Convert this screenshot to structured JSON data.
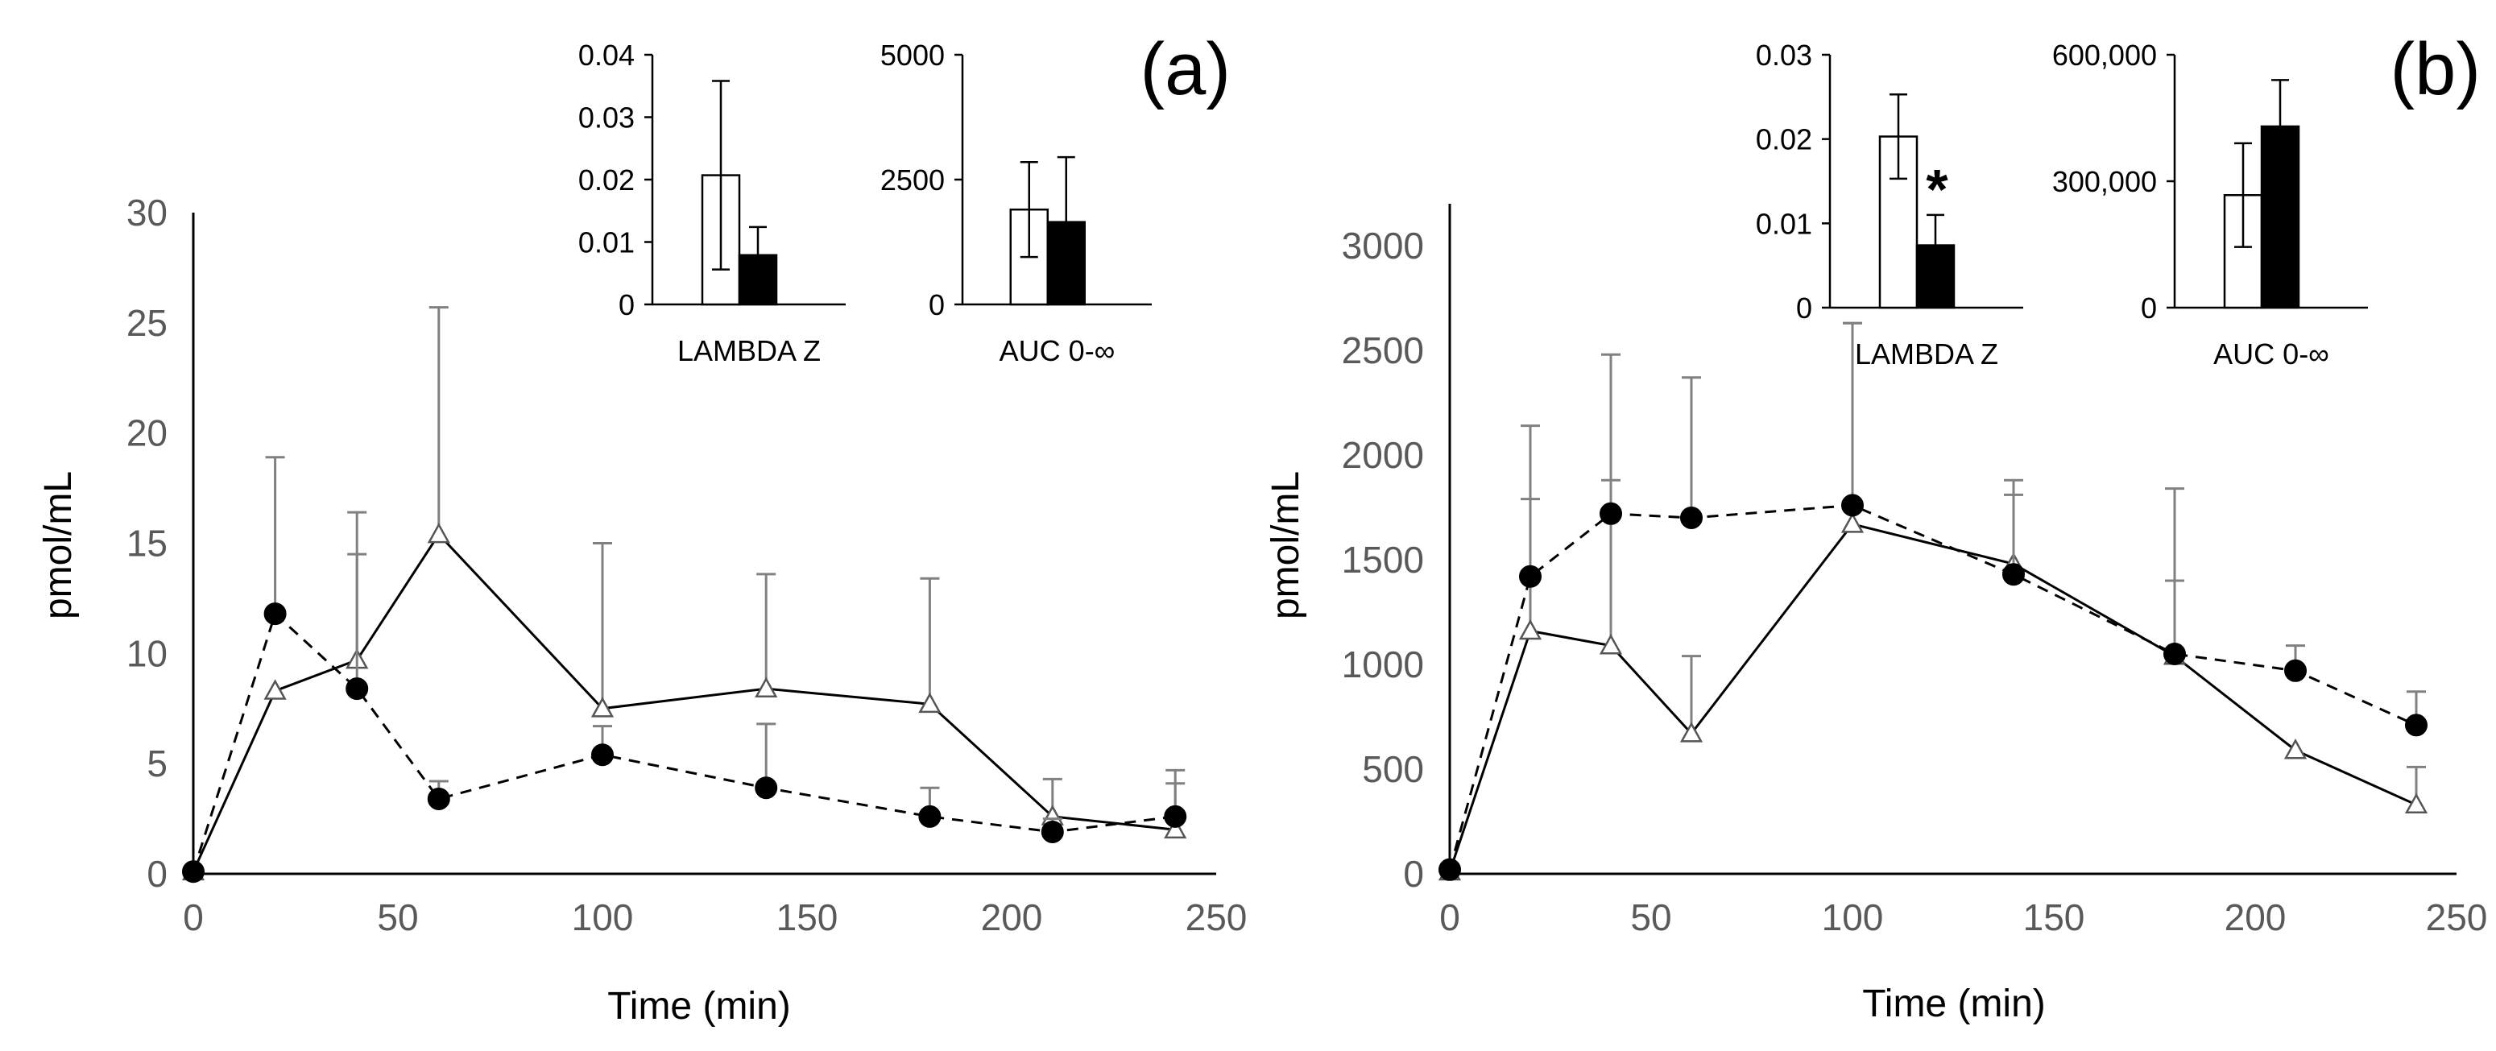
{
  "chart_data": [
    {
      "id": "a",
      "type": "line",
      "panel_label": "(a)",
      "xlabel": "Time (min)",
      "ylabel": "pmol/mL",
      "xlim": [
        0,
        250
      ],
      "ylim": [
        0,
        30
      ],
      "xticks": [
        "0",
        "50",
        "100",
        "150",
        "200",
        "250"
      ],
      "yticks": [
        "0",
        "5",
        "10",
        "15",
        "20",
        "25",
        "30"
      ],
      "series": [
        {
          "name": "open-triangle-solid",
          "marker": "triangle",
          "line": "solid",
          "x": [
            0,
            20,
            40,
            60,
            100,
            140,
            180,
            210,
            240
          ],
          "y": [
            0.1,
            8.3,
            9.7,
            15.4,
            7.5,
            8.4,
            7.7,
            2.6,
            2.0
          ],
          "err": [
            0,
            0,
            4.8,
            10.3,
            7.5,
            5.2,
            5.7,
            1.7,
            2.1
          ]
        },
        {
          "name": "filled-circle-dashed",
          "marker": "circle",
          "line": "dashed",
          "x": [
            0,
            20,
            40,
            60,
            100,
            140,
            180,
            210,
            240
          ],
          "y": [
            0.1,
            11.8,
            8.4,
            3.4,
            5.4,
            3.9,
            2.6,
            1.9,
            2.6
          ],
          "err": [
            0,
            7.1,
            8.0,
            0.8,
            1.3,
            2.9,
            1.3,
            0.6,
            2.1
          ]
        }
      ],
      "insets": [
        {
          "type": "bar",
          "xlabel": "LAMBDA Z",
          "ylim": [
            0,
            0.04
          ],
          "yticks": [
            "0",
            "0.01",
            "0.02",
            "0.03",
            "0.04"
          ],
          "values": [
            0.0207,
            0.0079
          ],
          "err": [
            0.0151,
            0.0045
          ],
          "fills": [
            "#ffffff",
            "#000000"
          ]
        },
        {
          "type": "bar",
          "xlabel": "AUC 0-∞",
          "ylim": [
            0,
            5000
          ],
          "yticks": [
            "0",
            "2500",
            "5000"
          ],
          "values": [
            1900,
            1650
          ],
          "err": [
            950,
            1300
          ],
          "fills": [
            "#ffffff",
            "#000000"
          ]
        }
      ]
    },
    {
      "id": "b",
      "type": "line",
      "panel_label": "(b)",
      "xlabel": "Time (min)",
      "ylabel": "pmol/mL",
      "xlim": [
        0,
        250
      ],
      "ylim": [
        0,
        3200
      ],
      "xticks": [
        "0",
        "50",
        "100",
        "150",
        "200",
        "250"
      ],
      "yticks": [
        "0",
        "500",
        "1000",
        "1500",
        "2000",
        "2500",
        "3000"
      ],
      "series": [
        {
          "name": "open-triangle-solid",
          "marker": "triangle",
          "line": "solid",
          "x": [
            0,
            20,
            40,
            60,
            100,
            140,
            180,
            210,
            240
          ],
          "y": [
            10,
            1160,
            1090,
            670,
            1670,
            1480,
            1040,
            590,
            330
          ],
          "err": [
            0,
            630,
            790,
            370,
            960,
            330,
            360,
            0,
            180
          ]
        },
        {
          "name": "filled-circle-dashed",
          "marker": "circle",
          "line": "dashed",
          "x": [
            0,
            20,
            40,
            60,
            100,
            140,
            180,
            210,
            240
          ],
          "y": [
            20,
            1420,
            1720,
            1700,
            1760,
            1430,
            1050,
            970,
            710
          ],
          "err": [
            0,
            720,
            760,
            670,
            870,
            450,
            790,
            120,
            160
          ]
        }
      ],
      "insets": [
        {
          "type": "bar",
          "xlabel": "LAMBDA Z",
          "ylim": [
            0,
            0.03
          ],
          "yticks": [
            "0",
            "0.01",
            "0.02",
            "0.03"
          ],
          "values": [
            0.0203,
            0.0074
          ],
          "err": [
            0.005,
            0.0036
          ],
          "fills": [
            "#ffffff",
            "#000000"
          ],
          "annotation": "*"
        },
        {
          "type": "bar",
          "xlabel": "AUC 0-∞",
          "ylim": [
            0,
            600000
          ],
          "yticks": [
            "0",
            "300,000",
            "600,000"
          ],
          "values": [
            267000,
            430000
          ],
          "err": [
            123000,
            110000
          ],
          "fills": [
            "#ffffff",
            "#000000"
          ]
        }
      ]
    }
  ]
}
